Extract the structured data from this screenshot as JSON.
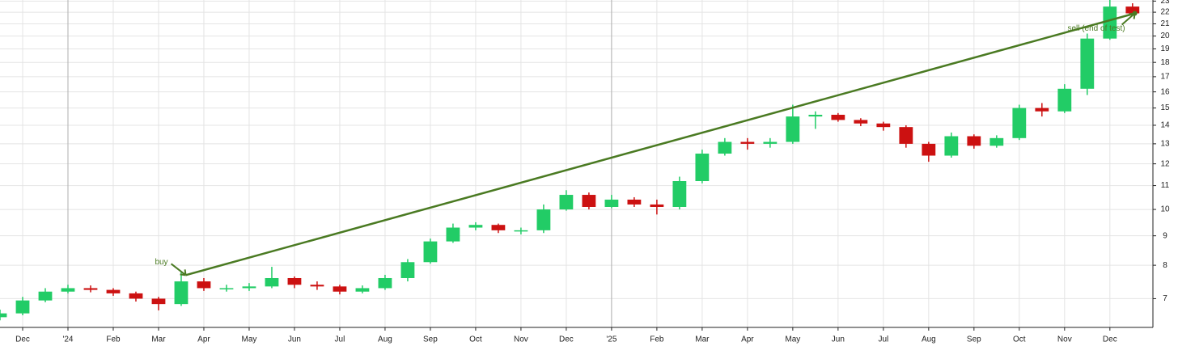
{
  "chart_data": {
    "type": "candlestick",
    "up_color": "#22cc66",
    "down_color": "#cc1111",
    "trade_color": "#4a7a22",
    "log_y": true,
    "grid": true,
    "ylim": [
      6.24,
      23.1
    ],
    "yticks": [
      7,
      8,
      9,
      10,
      11,
      12,
      13,
      14,
      15,
      16,
      17,
      18,
      19,
      20,
      21,
      22,
      23
    ],
    "xlim": [
      -0.5,
      24.95
    ],
    "xticks": [
      {
        "value": 0,
        "label": "Dec"
      },
      {
        "value": 1,
        "label": "'24"
      },
      {
        "value": 2,
        "label": "Feb"
      },
      {
        "value": 3,
        "label": "Mar"
      },
      {
        "value": 4,
        "label": "Apr"
      },
      {
        "value": 5,
        "label": "May"
      },
      {
        "value": 6,
        "label": "Jun"
      },
      {
        "value": 7,
        "label": "Jul"
      },
      {
        "value": 8,
        "label": "Aug"
      },
      {
        "value": 9,
        "label": "Sep"
      },
      {
        "value": 10,
        "label": "Oct"
      },
      {
        "value": 11,
        "label": "Nov"
      },
      {
        "value": 12,
        "label": "Dec"
      },
      {
        "value": 13,
        "label": "'25"
      },
      {
        "value": 14,
        "label": "Feb"
      },
      {
        "value": 15,
        "label": "Mar"
      },
      {
        "value": 16,
        "label": "Apr"
      },
      {
        "value": 17,
        "label": "May"
      },
      {
        "value": 18,
        "label": "Jun"
      },
      {
        "value": 19,
        "label": "Jul"
      },
      {
        "value": 20,
        "label": "Aug"
      },
      {
        "value": 21,
        "label": "Sep"
      },
      {
        "value": 22,
        "label": "Oct"
      },
      {
        "value": 23,
        "label": "Nov"
      },
      {
        "value": 24,
        "label": "Dec"
      }
    ],
    "year_lines": [
      1,
      13
    ],
    "x": [
      -0.5,
      0,
      0.5,
      1,
      1.5,
      2,
      2.5,
      3,
      3.5,
      4,
      4.5,
      5,
      5.5,
      6,
      6.5,
      7,
      7.5,
      8,
      8.5,
      9,
      9.5,
      10,
      10.5,
      11,
      11.5,
      12,
      12.5,
      13,
      13.5,
      14,
      14.5,
      15,
      15.5,
      16,
      16.5,
      17,
      17.5,
      18,
      18.5,
      19,
      19.5,
      20,
      20.5,
      21,
      21.5,
      22,
      22.5,
      23,
      23.5,
      24,
      24.5
    ],
    "open": [
      6.5,
      6.6,
      6.95,
      7.2,
      7.3,
      7.25,
      7.15,
      7.0,
      6.85,
      7.5,
      7.3,
      7.3,
      7.35,
      7.6,
      7.4,
      7.35,
      7.2,
      7.3,
      7.6,
      8.1,
      8.8,
      9.3,
      9.4,
      9.2,
      9.2,
      10.0,
      10.6,
      10.1,
      10.4,
      10.2,
      10.1,
      11.2,
      12.5,
      13.1,
      13.0,
      13.1,
      14.5,
      14.6,
      14.3,
      14.1,
      13.9,
      13.0,
      12.4,
      13.4,
      12.9,
      13.3,
      15.0,
      14.8,
      16.2,
      19.8,
      22.5
    ],
    "high": [
      6.7,
      7.05,
      7.3,
      7.4,
      7.38,
      7.3,
      7.2,
      7.05,
      7.8,
      7.6,
      7.4,
      7.45,
      7.95,
      7.65,
      7.5,
      7.4,
      7.38,
      7.7,
      8.2,
      8.9,
      9.45,
      9.5,
      9.45,
      9.3,
      10.2,
      10.8,
      10.7,
      10.6,
      10.5,
      10.4,
      11.4,
      12.7,
      13.3,
      13.3,
      13.3,
      15.2,
      14.8,
      14.7,
      14.4,
      14.2,
      14.0,
      13.1,
      13.6,
      13.5,
      13.45,
      15.2,
      15.3,
      16.5,
      20.2,
      23.1,
      22.8
    ],
    "low": [
      6.42,
      6.55,
      6.9,
      7.15,
      7.18,
      7.08,
      6.92,
      6.68,
      6.8,
      7.22,
      7.2,
      7.22,
      7.3,
      7.3,
      7.25,
      7.12,
      7.15,
      7.25,
      7.5,
      8.05,
      8.75,
      9.2,
      9.1,
      9.05,
      9.1,
      9.95,
      10.0,
      10.05,
      10.1,
      9.8,
      10.0,
      11.1,
      12.4,
      12.7,
      12.8,
      13.0,
      13.8,
      14.2,
      13.95,
      13.7,
      12.8,
      12.1,
      12.3,
      12.75,
      12.8,
      13.2,
      14.5,
      14.7,
      15.8,
      19.7,
      21.7
    ],
    "close": [
      6.6,
      6.95,
      7.2,
      7.3,
      7.25,
      7.15,
      7.0,
      6.85,
      7.5,
      7.3,
      7.3,
      7.35,
      7.6,
      7.4,
      7.35,
      7.2,
      7.3,
      7.6,
      8.1,
      8.8,
      9.3,
      9.4,
      9.2,
      9.2,
      10.0,
      10.6,
      10.1,
      10.4,
      10.2,
      10.1,
      11.2,
      12.5,
      13.1,
      13.0,
      13.1,
      14.5,
      14.6,
      14.3,
      14.1,
      13.9,
      13.0,
      12.4,
      13.4,
      12.9,
      13.3,
      15.0,
      14.8,
      16.2,
      19.8,
      22.5,
      21.9
    ],
    "trade": {
      "x": [
        3.6,
        24.55
      ],
      "y": [
        7.69,
        21.9
      ],
      "buy_label": "buy",
      "sell_label": "sell (end of test)"
    }
  }
}
